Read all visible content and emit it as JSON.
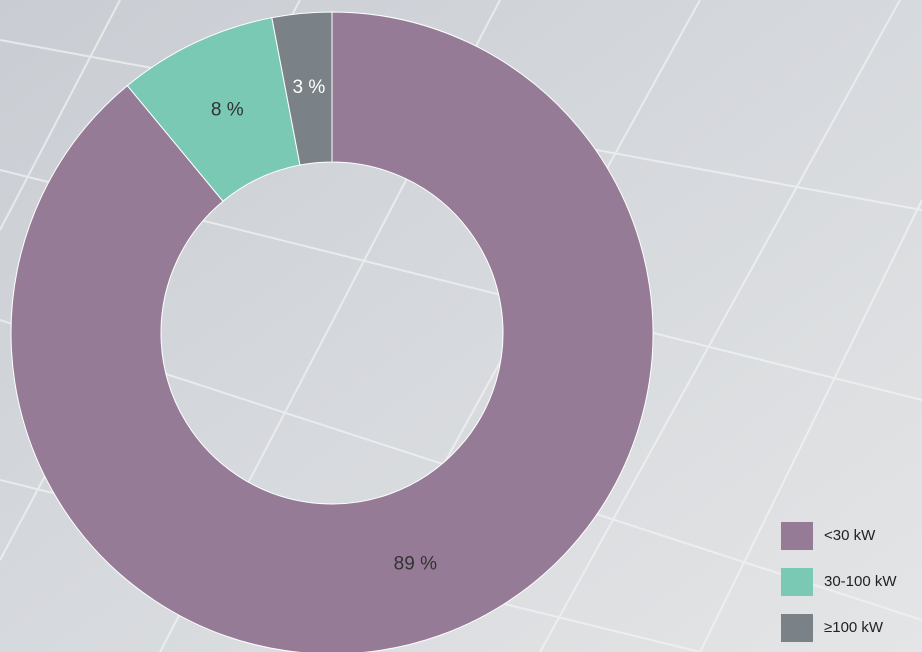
{
  "chart_data": {
    "type": "donut",
    "categories": [
      "<30 kW",
      "30-100 kW",
      "≥100 kW"
    ],
    "values": [
      89,
      8,
      3
    ],
    "value_labels": [
      "89 %",
      "8 %",
      "3 %"
    ],
    "colors": [
      "#967b97",
      "#79c9b5",
      "#7a8288"
    ],
    "legend": "bottom-right"
  }
}
